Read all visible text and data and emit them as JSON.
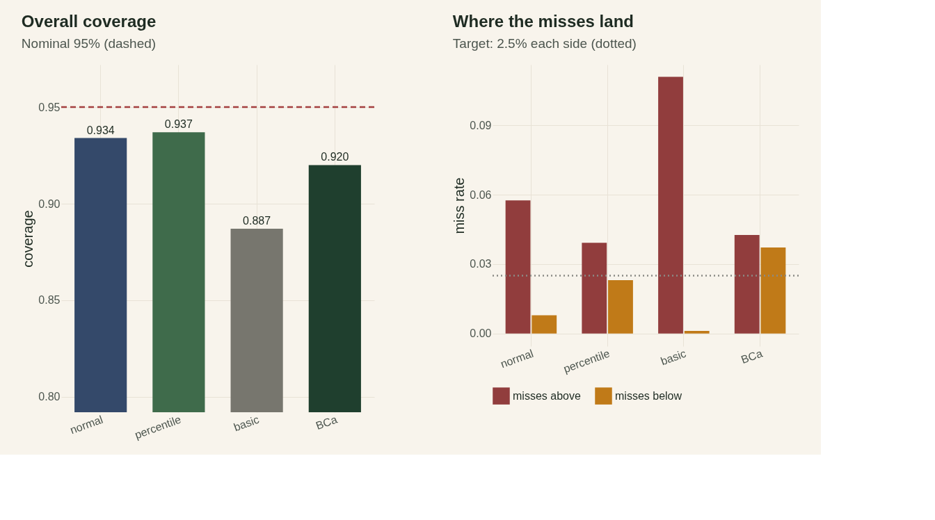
{
  "chart_data": [
    {
      "type": "bar",
      "title": "Overall coverage",
      "subtitle": "Nominal 95% (dashed)",
      "ylabel": "coverage",
      "categories": [
        "normal",
        "percentile",
        "basic",
        "BCa"
      ],
      "values": [
        0.934,
        0.937,
        0.887,
        0.92
      ],
      "colors": [
        "#34496a",
        "#3f6b4b",
        "#77766e",
        "#1f3f2e"
      ],
      "value_labels": [
        "0.934",
        "0.937",
        "0.887",
        "0.920"
      ],
      "ylim": [
        0.792,
        0.972
      ],
      "yticks": [
        {
          "value": 0.8,
          "label": "0.80"
        },
        {
          "value": 0.85,
          "label": "0.85"
        },
        {
          "value": 0.9,
          "label": "0.90"
        },
        {
          "value": 0.95,
          "label": "0.95"
        }
      ],
      "ref_lines": [
        {
          "axis": "y",
          "value": 0.95,
          "color": "#a33f3f",
          "line_style": "dashed"
        }
      ],
      "grid": true
    },
    {
      "type": "bar",
      "title": "Where the misses land",
      "subtitle": "Target: 2.5% each side (dotted)",
      "ylabel": "miss rate",
      "categories": [
        "normal",
        "percentile",
        "basic",
        "BCa"
      ],
      "series": [
        {
          "name": "misses above",
          "color": "#913d3d",
          "values": [
            0.0576,
            0.0392,
            0.111,
            0.0426
          ]
        },
        {
          "name": "misses below",
          "color": "#c07a18",
          "values": [
            0.0079,
            0.0231,
            0.0011,
            0.0372
          ]
        }
      ],
      "ylim": [
        -0.0055,
        0.1163
      ],
      "yticks": [
        {
          "value": 0,
          "label": "0.00"
        },
        {
          "value": 0.03,
          "label": "0.03"
        },
        {
          "value": 0.06,
          "label": "0.06"
        },
        {
          "value": 0.09,
          "label": "0.09"
        }
      ],
      "ref_lines": [
        {
          "axis": "y",
          "value": 0.025,
          "color": "#8a8a85",
          "line_style": "dotted"
        }
      ],
      "grid": true,
      "legend": "bottom"
    }
  ]
}
